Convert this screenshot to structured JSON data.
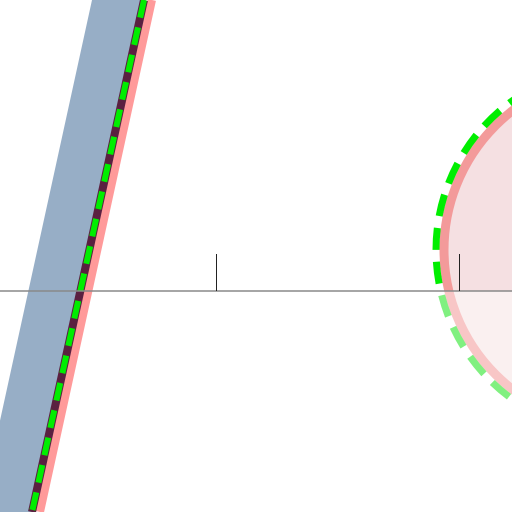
{
  "colors": {
    "background": "#ffffff",
    "band_fill": "#97aec6",
    "band_edge_red": "#ff9a9a",
    "band_edge_dark": "#5a2040",
    "green_dash": "#00ee00",
    "green_dash_light": "#80f080",
    "circle_fill_upper": "#f5e0e2",
    "circle_fill_lower": "#faf0f0",
    "circle_edge_upper": "#f39a9a",
    "circle_edge_lower": "#f8c6c6",
    "axis_line": "#888888",
    "tick": "#222222"
  },
  "elements": {
    "band": "shaded-band",
    "boundary": "dashed-boundary-line",
    "circle": "shaded-circle",
    "axis": "horizontal-axis",
    "ticks": "axis-ticks"
  }
}
